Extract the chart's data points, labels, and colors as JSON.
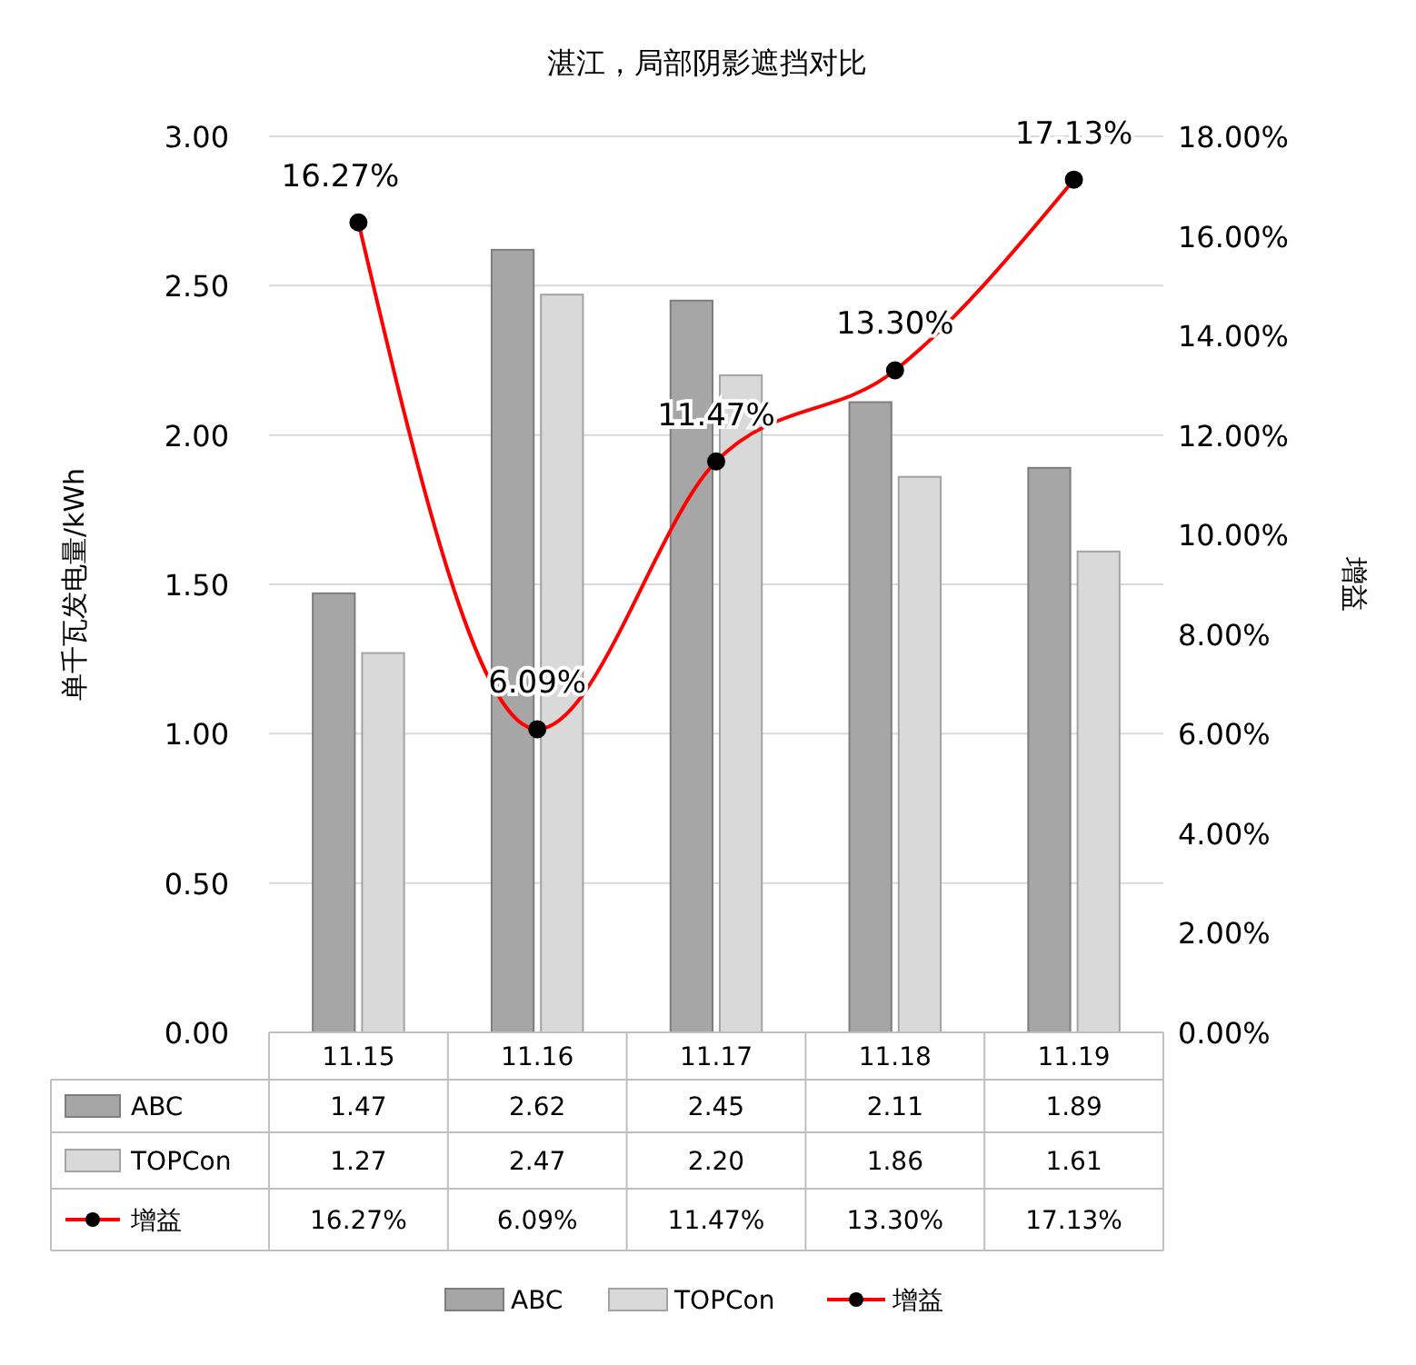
{
  "chart_data": {
    "type": "bar",
    "title": "湛江，局部阴影遮挡对比",
    "ylabel": "单千瓦发电量/kWh",
    "y2label": "增益",
    "categories": [
      "11.15",
      "11.16",
      "11.17",
      "11.18",
      "11.19"
    ],
    "series": [
      {
        "name": "ABC",
        "color": "#a6a6a6",
        "values": [
          1.47,
          2.62,
          2.45,
          2.11,
          1.89
        ],
        "value_labels": [
          "1.47",
          "2.62",
          "2.45",
          "2.11",
          "1.89"
        ]
      },
      {
        "name": "TOPCon",
        "color": "#d9d9d9",
        "values": [
          1.27,
          2.47,
          2.2,
          1.86,
          1.61
        ],
        "value_labels": [
          "1.27",
          "2.47",
          "2.20",
          "1.86",
          "1.61"
        ]
      },
      {
        "name": "增益",
        "type": "line",
        "axis": "y2",
        "color": "#ff0000",
        "marker": "circle",
        "values": [
          16.27,
          6.09,
          11.47,
          13.3,
          17.13
        ],
        "value_labels": [
          "16.27%",
          "6.09%",
          "11.47%",
          "13.30%",
          "17.13%"
        ]
      }
    ],
    "ylim": [
      0,
      3
    ],
    "yticks": [
      {
        "value": 0,
        "label": "0.00"
      },
      {
        "value": 0.5,
        "label": "0.50"
      },
      {
        "value": 1,
        "label": "1.00"
      },
      {
        "value": 1.5,
        "label": "1.50"
      },
      {
        "value": 2,
        "label": "2.00"
      },
      {
        "value": 2.5,
        "label": "2.50"
      },
      {
        "value": 3,
        "label": "3.00"
      }
    ],
    "y2lim": [
      0,
      18
    ],
    "y2ticks": [
      {
        "value": 0,
        "label": "0.00%"
      },
      {
        "value": 2,
        "label": "2.00%"
      },
      {
        "value": 4,
        "label": "4.00%"
      },
      {
        "value": 6,
        "label": "6.00%"
      },
      {
        "value": 8,
        "label": "8.00%"
      },
      {
        "value": 10,
        "label": "10.00%"
      },
      {
        "value": 12,
        "label": "12.00%"
      },
      {
        "value": 14,
        "label": "14.00%"
      },
      {
        "value": 16,
        "label": "16.00%"
      },
      {
        "value": 18,
        "label": "18.00%"
      }
    ],
    "grid": "y",
    "legend": "bottom",
    "data_labels": true
  }
}
